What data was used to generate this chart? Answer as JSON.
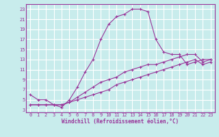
{
  "xlabel": "Windchill (Refroidissement éolien,°C)",
  "bg_color": "#c8ecec",
  "grid_color": "#ffffff",
  "line_color": "#993399",
  "spine_color": "#993399",
  "xlim": [
    -0.5,
    23.5
  ],
  "ylim": [
    2.5,
    24
  ],
  "xticks": [
    0,
    1,
    2,
    3,
    4,
    5,
    6,
    7,
    8,
    9,
    10,
    11,
    12,
    13,
    14,
    15,
    16,
    17,
    18,
    19,
    20,
    21,
    22,
    23
  ],
  "yticks": [
    3,
    5,
    7,
    9,
    11,
    13,
    15,
    17,
    19,
    21,
    23
  ],
  "line1_x": [
    0,
    1,
    2,
    3,
    4,
    5,
    6,
    7,
    8,
    9,
    10,
    11,
    12,
    13,
    14,
    15,
    16,
    17,
    18,
    19,
    20,
    21,
    22,
    23
  ],
  "line1_y": [
    6,
    5,
    5,
    4,
    3.5,
    5,
    7.5,
    10.5,
    13,
    17,
    20,
    21.5,
    22,
    23,
    23,
    22.5,
    17,
    14.5,
    14,
    14,
    12,
    12.5,
    13,
    13
  ],
  "line2_x": [
    0,
    1,
    2,
    3,
    4,
    5,
    6,
    7,
    8,
    9,
    10,
    11,
    12,
    13,
    14,
    15,
    16,
    17,
    18,
    19,
    20,
    21,
    22,
    23
  ],
  "line2_y": [
    4,
    4,
    4,
    4,
    4,
    4.5,
    5,
    5.5,
    6,
    6.5,
    7,
    8,
    8.5,
    9,
    9.5,
    10,
    10.5,
    11,
    11.5,
    12,
    12.5,
    13,
    12,
    12.5
  ],
  "line3_x": [
    0,
    1,
    2,
    3,
    4,
    5,
    6,
    7,
    8,
    9,
    10,
    11,
    12,
    13,
    14,
    15,
    16,
    17,
    18,
    19,
    20,
    21,
    22,
    23
  ],
  "line3_y": [
    4,
    4,
    4,
    4,
    4,
    4.5,
    5.5,
    6.5,
    7.5,
    8.5,
    9,
    9.5,
    10.5,
    11,
    11.5,
    12,
    12,
    12.5,
    13,
    13.5,
    14,
    14,
    12.5,
    13
  ]
}
